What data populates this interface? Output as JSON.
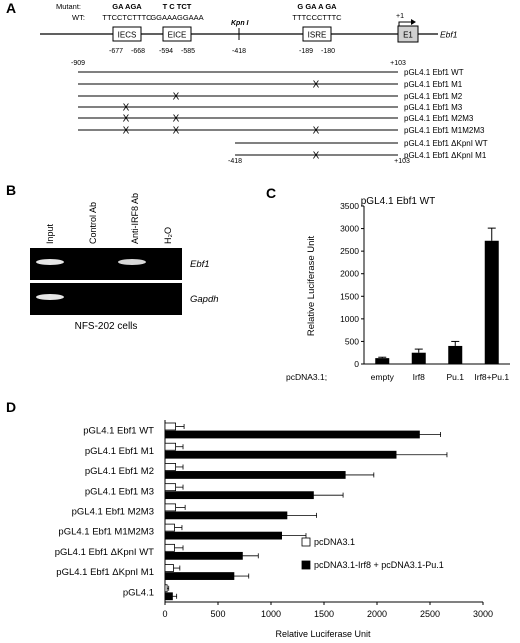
{
  "panel_a": {
    "letter": "A",
    "mutant_label": "Mutant:",
    "wt_label": "WT:",
    "sites": [
      {
        "name": "IECS",
        "mutant": "GA        AGA",
        "wt": "TTCCTCTTTC",
        "pos_left": "-677",
        "pos_right": "-668"
      },
      {
        "name": "EICE",
        "mutant": "T  C       TCT",
        "wt": "GGAAAGGAAA",
        "pos_left": "-594",
        "pos_right": "-585"
      },
      {
        "name": "ISRE",
        "mutant": "G GA    A GA",
        "wt": "TTTCCCTTTC",
        "pos_left": "-189",
        "pos_right": "-180"
      }
    ],
    "kpn_label": "Kpn I",
    "kpn_pos": "-418",
    "tss_label": "+1",
    "exon_label": "E1",
    "gene_label": "Ebf1",
    "construct_start": "-909",
    "construct_end": "+103",
    "kpn_start": "-418",
    "kpn_end": "+103",
    "mutation_mark": "X",
    "constructs": [
      {
        "name": "pGL4.1 Ebf1 WT"
      },
      {
        "name": "pGL4.1 Ebf1 M1"
      },
      {
        "name": "pGL4.1 Ebf1 M2"
      },
      {
        "name": "pGL4.1 Ebf1 M3"
      },
      {
        "name": "pGL4.1 Ebf1 M2M3"
      },
      {
        "name": "pGL4.1 Ebf1 M1M2M3"
      },
      {
        "name": "pGL4.1 Ebf1 ΔKpnI WT"
      },
      {
        "name": "pGL4.1 Ebf1 ΔKpnI M1"
      }
    ]
  },
  "panel_b": {
    "letter": "B",
    "lanes": [
      "Input",
      "Control Ab",
      "Anti-IRF8 Ab",
      "H₂O"
    ],
    "genes": [
      "Ebf1",
      "Gapdh"
    ],
    "caption": "NFS-202 cells"
  },
  "panel_c": {
    "letter": "C",
    "x_prefix": "pcDNA3.1;"
  },
  "panel_d": {
    "letter": "D"
  },
  "chart_data": [
    {
      "type": "bar",
      "title": "pGL4.1 Ebf1 WT",
      "ylabel": "Relative Luciferase Unit",
      "xlabel": "",
      "categories": [
        "empty",
        "Irf8",
        "Pu.1",
        "Irf8+Pu.1"
      ],
      "values": [
        130,
        250,
        400,
        2730
      ],
      "errors": [
        20,
        80,
        100,
        280
      ],
      "ylim": [
        0,
        3500
      ],
      "yticks": [
        0,
        500,
        1000,
        1500,
        2000,
        2500,
        3000,
        3500
      ]
    },
    {
      "type": "bar",
      "orientation": "horizontal",
      "xlabel": "Relative Luciferase Unit",
      "ylabel": "",
      "xlim": [
        0,
        3000
      ],
      "xticks": [
        0,
        500,
        1000,
        1500,
        2000,
        2500,
        3000
      ],
      "categories": [
        "pGL4.1 Ebf1 WT",
        "pGL4.1 Ebf1 M1",
        "pGL4.1 Ebf1 M2",
        "pGL4.1 Ebf1 M3",
        "pGL4.1 Ebf1 M2M3",
        "pGL4.1 Ebf1 M1M2M3",
        "pGL4.1 Ebf1 ΔKpnI WT",
        "pGL4.1 Ebf1 ΔKpnI M1",
        "pGL4.1"
      ],
      "series": [
        {
          "name": "pcDNA3.1",
          "color": "#ffffff",
          "values": [
            100,
            100,
            100,
            100,
            100,
            90,
            90,
            80,
            20
          ],
          "errors": [
            80,
            70,
            70,
            70,
            90,
            70,
            80,
            60,
            15
          ]
        },
        {
          "name": "pcDNA3.1-Irf8 + pcDNA3.1-Pu.1",
          "color": "#000000",
          "values": [
            2400,
            2180,
            1700,
            1400,
            1150,
            1100,
            730,
            650,
            70
          ],
          "errors": [
            200,
            480,
            270,
            280,
            280,
            230,
            150,
            140,
            40
          ]
        }
      ],
      "legend": "bottom-right"
    }
  ]
}
